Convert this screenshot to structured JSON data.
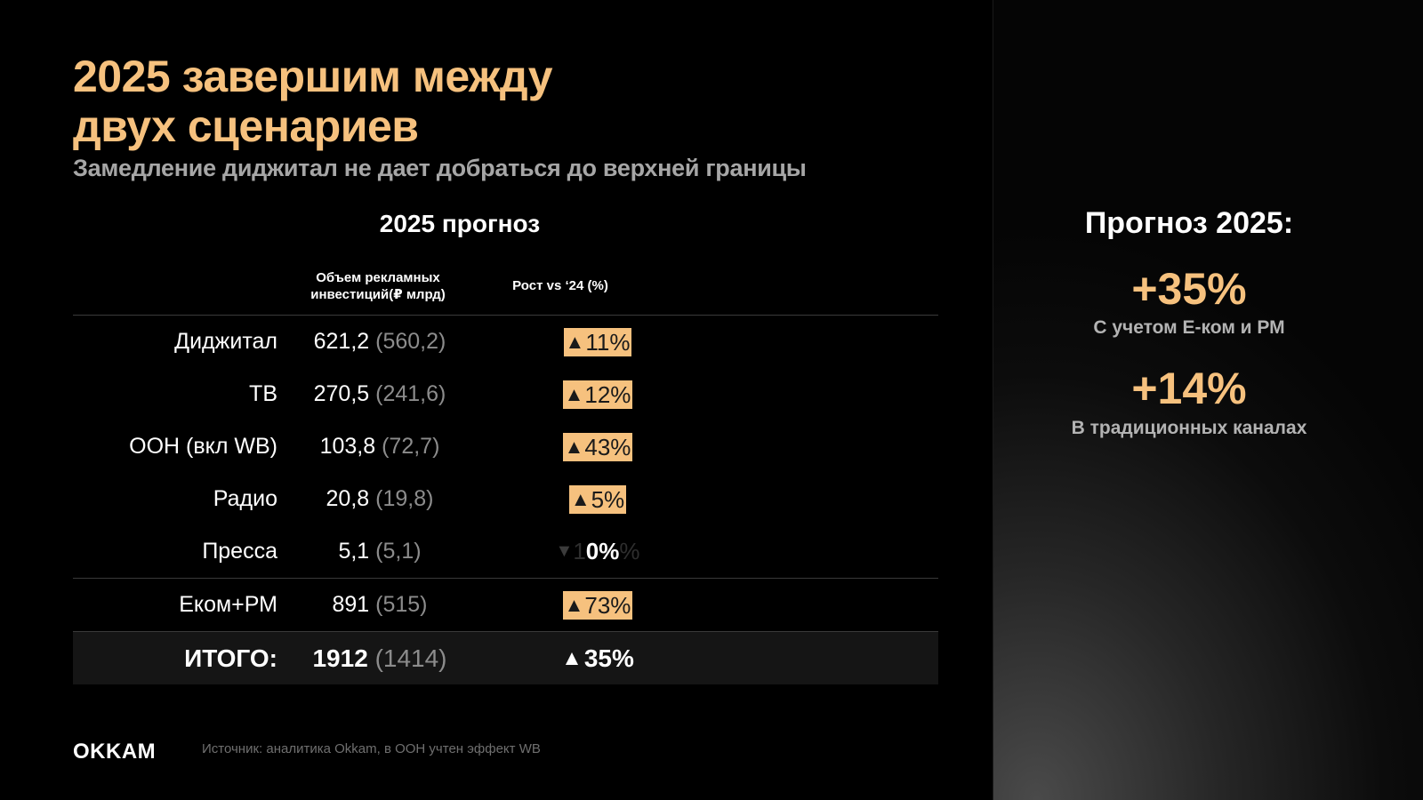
{
  "title_line1": "2025 завершим между",
  "title_line2": "двух сценариев",
  "subtitle": "Замедление диджитал не дает добраться до верхней границы",
  "table": {
    "title": "2025 прогноз",
    "col_volume": "Объем рекламных инвестиций(₽ млрд)",
    "col_growth": "Рост  vs ‘24 (%)",
    "rows": [
      {
        "label": "Диджитал",
        "value": "621,2",
        "prev": "(560,2)",
        "growth": "11%",
        "triangle": "▲"
      },
      {
        "label": "ТВ",
        "value": "270,5",
        "prev": "(241,6)",
        "growth": "12%",
        "triangle": "▲"
      },
      {
        "label": "ООН (вкл WB)",
        "value": "103,8",
        "prev": "(72,7)",
        "growth": "43%",
        "triangle": "▲"
      },
      {
        "label": "Радио",
        "value": "20,8",
        "prev": "(19,8)",
        "growth": "5%",
        "triangle": "▲"
      },
      {
        "label": "Пресса",
        "value": "5,1",
        "prev": "(5,1)",
        "growth": "0%",
        "triangle": "▼",
        "ghost_pre": "1",
        "ghost_post": "%"
      },
      {
        "label": "Еком+РМ",
        "value": "891",
        "prev": "(515)",
        "growth": "73%",
        "triangle": "▲"
      }
    ],
    "total": {
      "label": "ИТОГО:",
      "value": "1912",
      "prev": "(1414)",
      "growth": "35%",
      "triangle": "▲"
    }
  },
  "logo": "OKKAM",
  "source": "Источник: аналитика Okkam, в ООН учтен эффект WB",
  "side": {
    "title": "Прогноз 2025:",
    "stat1_value": "+35%",
    "stat1_caption": "С учетом E-ком и РМ",
    "stat2_value": "+14%",
    "stat2_caption": "В традиционных каналах"
  },
  "colors": {
    "accent": "#f6c17e",
    "muted": "#8c8c8c",
    "background": "#000000"
  }
}
